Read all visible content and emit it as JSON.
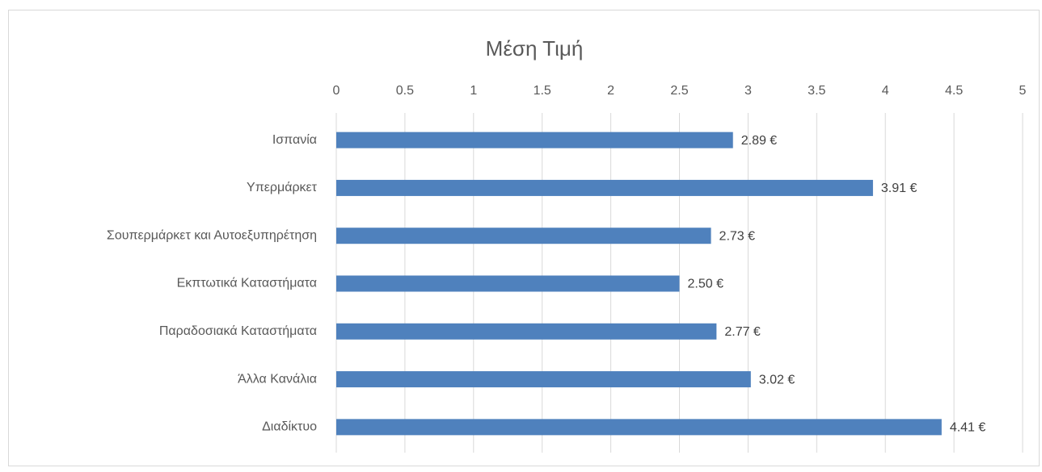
{
  "chart_data": {
    "type": "bar",
    "orientation": "horizontal",
    "title": "Μέση Τιμή",
    "categories": [
      "Ισπανία",
      "Υπερμάρκετ",
      "Σουπερμάρκετ και Αυτοεξυπηρέτηση",
      "Εκπτωτικά Καταστήματα",
      "Παραδοσιακά Καταστήματα",
      "Άλλα Κανάλια",
      "Διαδίκτυο"
    ],
    "values": [
      2.89,
      3.91,
      2.73,
      2.5,
      2.77,
      3.02,
      4.41
    ],
    "value_labels": [
      "2.89 €",
      "3.91 €",
      "2.73 €",
      "2.50 €",
      "2.77 €",
      "3.02 €",
      "4.41 €"
    ],
    "color": "#4f81bd",
    "xlim": [
      0,
      5
    ],
    "xticks": [
      0,
      0.5,
      1,
      1.5,
      2,
      2.5,
      3,
      3.5,
      4,
      4.5,
      5
    ],
    "grid": true
  }
}
